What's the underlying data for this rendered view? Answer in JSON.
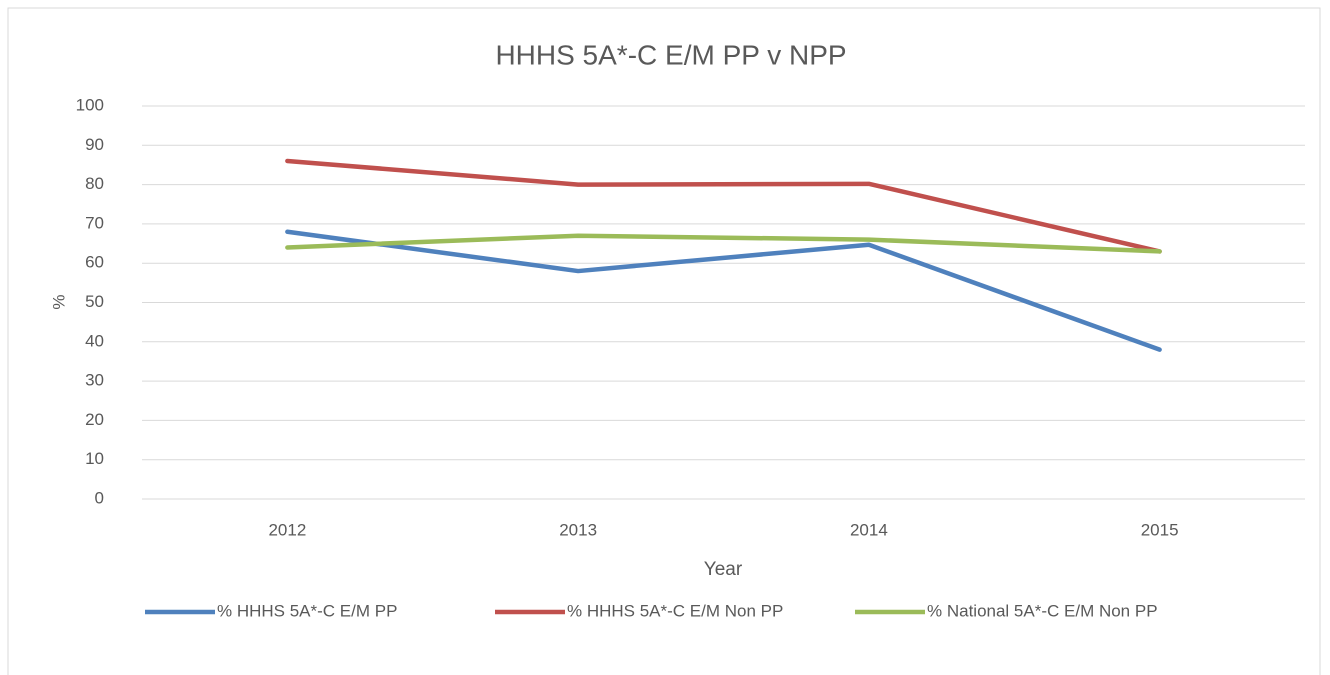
{
  "chart_data": {
    "type": "line",
    "title": "HHHS 5A*-C E/M PP v NPP",
    "xlabel": "Year",
    "ylabel": "%",
    "categories": [
      "2012",
      "2013",
      "2014",
      "2015"
    ],
    "series": [
      {
        "name": "% HHHS 5A*-C E/M PP",
        "color": "#4f81bd",
        "values": [
          68,
          58,
          64.7,
          38
        ]
      },
      {
        "name": "% HHHS 5A*-C E/M Non PP",
        "color": "#c0504d",
        "values": [
          86,
          80,
          80.2,
          63
        ]
      },
      {
        "name": "% National 5A*-C E/M Non PP",
        "color": "#9bbb59",
        "values": [
          64,
          67,
          66,
          63
        ]
      }
    ],
    "ylim": [
      0,
      100
    ],
    "yticks": [
      0,
      10,
      20,
      30,
      40,
      50,
      60,
      70,
      80,
      90,
      100
    ],
    "grid": true,
    "legend": "bottom"
  }
}
